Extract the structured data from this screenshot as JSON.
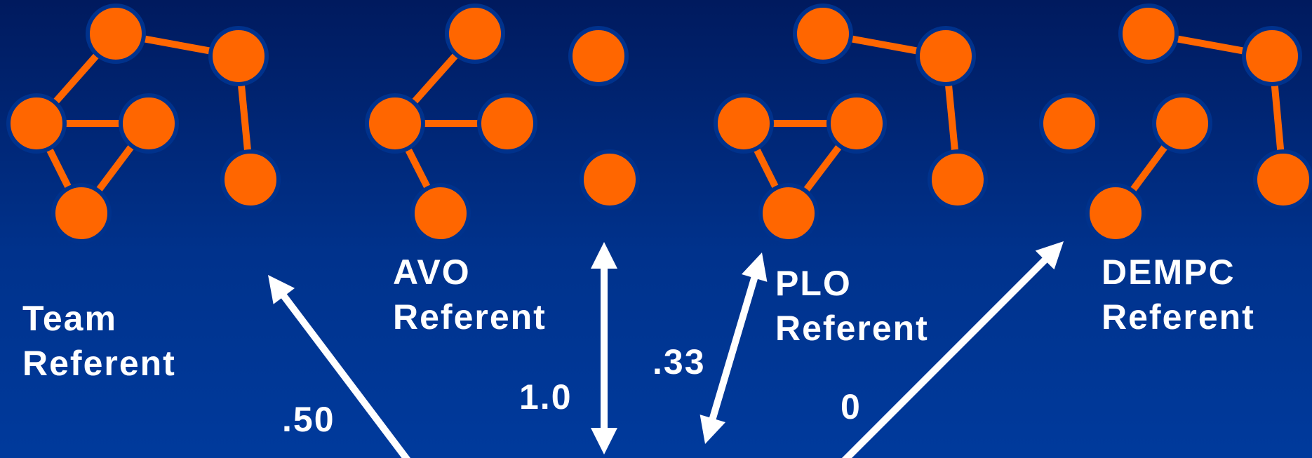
{
  "referents": [
    {
      "id": "team",
      "line1": "Team",
      "line2": "Referent"
    },
    {
      "id": "avo",
      "line1": "AVO",
      "line2": "Referent"
    },
    {
      "id": "plo",
      "line1": "PLO",
      "line2": "Referent"
    },
    {
      "id": "dempc",
      "line1": "DEMPC",
      "line2": "Referent"
    }
  ],
  "similarity_values": [
    ".50",
    "1.0",
    ".33",
    "0"
  ],
  "colors": {
    "node": "#ff6600",
    "edge": "#ff6600",
    "arrow": "#ffffff",
    "text": "#ffffff"
  }
}
